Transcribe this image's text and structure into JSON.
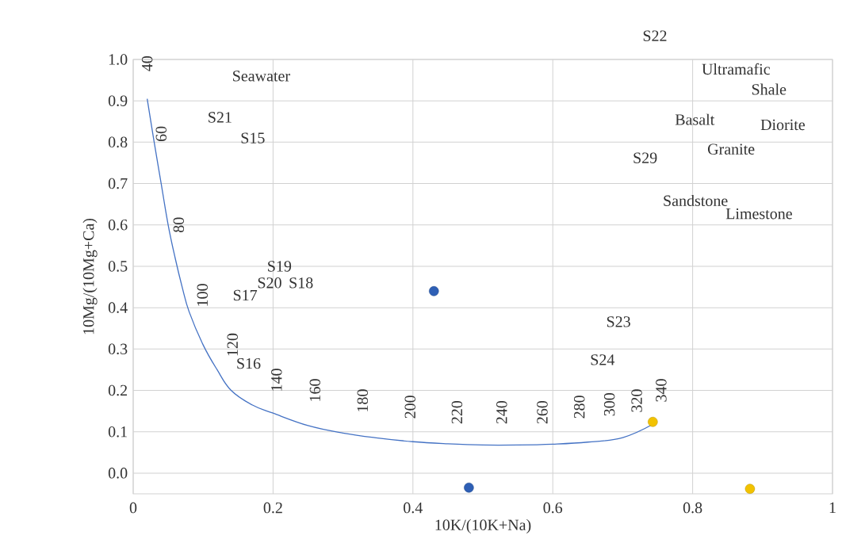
{
  "chart_data": {
    "type": "scatter",
    "xlabel": "10K/(10K+Na)",
    "ylabel": "10Mg/(10Mg+Ca)",
    "xlim": [
      0,
      1
    ],
    "ylim": [
      -0.05,
      1
    ],
    "xticks": [
      0,
      0.2,
      0.4,
      0.6,
      0.8,
      1
    ],
    "yticks": [
      {
        "value": 0,
        "label": "0.0"
      },
      0.1,
      0.2,
      0.3,
      0.4,
      0.5,
      0.6,
      0.7,
      0.8,
      0.9,
      {
        "value": 1,
        "label": "1.0"
      }
    ],
    "grid": true,
    "series": [
      {
        "type": "line",
        "marker": "none",
        "color": "#4472c4",
        "x": [
          0.02,
          0.03,
          0.04,
          0.05,
          0.06,
          0.07,
          0.08,
          0.1,
          0.12,
          0.14,
          0.17,
          0.2,
          0.25,
          0.3,
          0.35,
          0.4,
          0.45,
          0.5,
          0.55,
          0.6,
          0.65,
          0.7,
          0.745
        ],
        "values": [
          0.905,
          0.8,
          0.7,
          0.6,
          0.52,
          0.45,
          0.39,
          0.31,
          0.25,
          0.2,
          0.165,
          0.145,
          0.115,
          0.097,
          0.085,
          0.076,
          0.071,
          0.068,
          0.068,
          0.07,
          0.075,
          0.086,
          0.12
        ]
      },
      {
        "marker": "circle",
        "color": "#2e5fb5",
        "x": [
          0.43,
          0.48
        ],
        "values": [
          0.44,
          -0.035
        ]
      },
      {
        "marker": "circle",
        "color": "#f2c200",
        "x": [
          0.743,
          0.882
        ],
        "values": [
          0.124,
          -0.038
        ]
      }
    ],
    "annotations": [
      "40",
      "60",
      "80",
      "100",
      "120",
      "140",
      "160",
      "180",
      "200",
      "220",
      "240",
      "260",
      "280",
      "300",
      "320",
      "340",
      "Seawater",
      "S21",
      "S15",
      "S19",
      "S20",
      "S18",
      "S17",
      "S16",
      "S22",
      "Ultramafic",
      "Shale",
      "Basalt",
      "Diorite",
      "S29",
      "Granite",
      "Sandstone",
      "Limestone",
      "S23",
      "S24"
    ]
  }
}
